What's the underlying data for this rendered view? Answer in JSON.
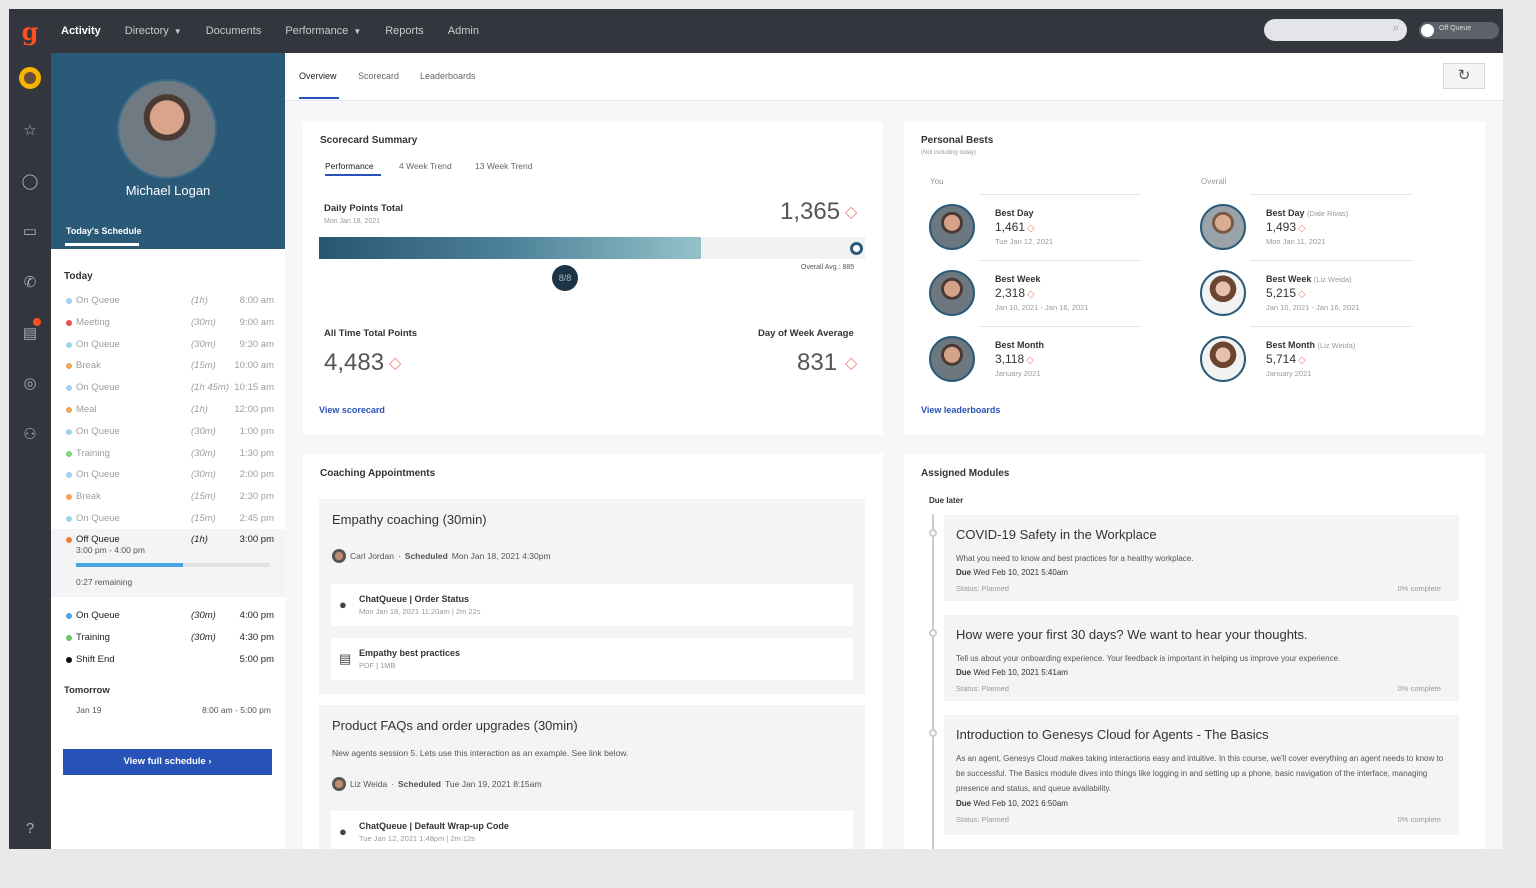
{
  "nav": {
    "logo": "g",
    "items": [
      {
        "label": "Activity",
        "active": true
      },
      {
        "label": "Directory",
        "caret": true
      },
      {
        "label": "Documents"
      },
      {
        "label": "Performance",
        "caret": true
      },
      {
        "label": "Reports"
      },
      {
        "label": "Admin"
      }
    ],
    "status_label": "Off Queue"
  },
  "profile": {
    "name": "Michael Logan",
    "tab": "Today's Schedule"
  },
  "schedule": {
    "today_label": "Today",
    "items": [
      {
        "name": "On Queue",
        "dur": "(1h)",
        "time": "8:00 am",
        "color": "#9fd3f2"
      },
      {
        "name": "Meeting",
        "dur": "(30m)",
        "time": "9:00 am",
        "color": "#e8504f"
      },
      {
        "name": "On Queue",
        "dur": "(30m)",
        "time": "9:30 am",
        "color": "#9fd3f2"
      },
      {
        "name": "Break",
        "dur": "(15m)",
        "time": "10:00 am",
        "color": "#f2a35c"
      },
      {
        "name": "On Queue",
        "dur": "(1h 45m)",
        "time": "10:15 am",
        "color": "#9fd3f2"
      },
      {
        "name": "Meal",
        "dur": "(1h)",
        "time": "12:00 pm",
        "color": "#f2a35c"
      },
      {
        "name": "On Queue",
        "dur": "(30m)",
        "time": "1:00 pm",
        "color": "#9fd3f2"
      },
      {
        "name": "Training",
        "dur": "(30m)",
        "time": "1:30 pm",
        "color": "#7fd37a"
      },
      {
        "name": "On Queue",
        "dur": "(30m)",
        "time": "2:00 pm",
        "color": "#9fd3f2"
      },
      {
        "name": "Break",
        "dur": "(15m)",
        "time": "2:30 pm",
        "color": "#f2a35c"
      },
      {
        "name": "On Queue",
        "dur": "(15m)",
        "time": "2:45 pm",
        "color": "#9fd3f2"
      }
    ],
    "current": {
      "name": "Off Queue",
      "dur": "(1h)",
      "time": "3:00 pm",
      "color": "#f07a30",
      "range": "3:00 pm - 4:00 pm",
      "remaining": "0:27 remaining",
      "progress": 0.55
    },
    "after": [
      {
        "name": "On Queue",
        "dur": "(30m)",
        "time": "4:00 pm",
        "color": "#4aa6e0"
      },
      {
        "name": "Training",
        "dur": "(30m)",
        "time": "4:30 pm",
        "color": "#6cc365"
      },
      {
        "name": "Shift End",
        "dur": "",
        "time": "5:00 pm",
        "color": "#111111"
      }
    ],
    "tomorrow_label": "Tomorrow",
    "tomorrow_date": "Jan 19",
    "tomorrow_time": "8:00 am - 5:00 pm",
    "full_button": "View full schedule ›"
  },
  "subtabs": [
    "Overview",
    "Scorecard",
    "Leaderboards"
  ],
  "scorecard": {
    "title": "Scorecard Summary",
    "tabs": [
      "Performance",
      "4 Week Trend",
      "13 Week Trend"
    ],
    "daily_label": "Daily Points Total",
    "daily_date": "Mon Jan 18, 2021",
    "daily_value": "1,365",
    "daily_progress": 0.7,
    "marker_label": "8/8",
    "overall_avg": "Overall Avg.: 885",
    "alltime_label": "All Time Total Points",
    "alltime_value": "4,483",
    "dow_label": "Day of Week Average",
    "dow_value": "831",
    "view_link": "View scorecard"
  },
  "bests": {
    "title": "Personal Bests",
    "subtitle": "(Not including today)",
    "you_label": "You",
    "overall_label": "Overall",
    "you": [
      {
        "label": "Best Day",
        "who": "",
        "value": "1,461",
        "date": "Tue Jan 12, 2021"
      },
      {
        "label": "Best Week",
        "who": "",
        "value": "2,318",
        "date": "Jan 10, 2021 - Jan 16, 2021"
      },
      {
        "label": "Best Month",
        "who": "",
        "value": "3,118",
        "date": "January 2021"
      }
    ],
    "overall": [
      {
        "label": "Best Day",
        "who": "(Dale Rivas)",
        "value": "1,493",
        "date": "Mon Jan 11, 2021"
      },
      {
        "label": "Best Week",
        "who": "(Liz Weida)",
        "value": "5,215",
        "date": "Jan 10, 2021 - Jan 16, 2021"
      },
      {
        "label": "Best Month",
        "who": "(Liz Weida)",
        "value": "5,714",
        "date": "January 2021"
      }
    ],
    "view_link": "View leaderboards"
  },
  "coaching": {
    "title": "Coaching Appointments",
    "appts": [
      {
        "title": "Empathy coaching (30min)",
        "meta_name": "Carl Jordan",
        "meta_sched": "Scheduled",
        "meta_time": "Mon Jan 18, 2021 4:30pm",
        "items": [
          {
            "icon": "●",
            "a": "ChatQueue | Order Status",
            "b": "Mon Jan 18, 2021 11:20am | 2m 22s"
          },
          {
            "icon": "▤",
            "a": "Empathy best practices",
            "b": "PDF | 1MB"
          }
        ]
      },
      {
        "title": "Product FAQs and order upgrades (30min)",
        "desc": "New agents session 5. Lets use this interaction as an example. See link below.",
        "meta_name": "Liz Weida",
        "meta_sched": "Scheduled",
        "meta_time": "Tue Jan 19, 2021 8:15am",
        "items": [
          {
            "icon": "●",
            "a": "ChatQueue | Default Wrap-up Code",
            "b": "Tue Jan 12, 2021 1:48pm | 2m 12s"
          }
        ]
      }
    ]
  },
  "modules": {
    "title": "Assigned Modules",
    "group": "Due later",
    "items": [
      {
        "title": "COVID-19 Safety in the Workplace",
        "desc": "What you need to know and best practices for a healthy workplace.",
        "due_label": "Due",
        "due": "Wed Feb 10, 2021 5:40am",
        "status": "Status: Planned",
        "pct": "0% complete"
      },
      {
        "title": "How were your first 30 days? We want to hear your thoughts.",
        "desc": "Tell us about your onboarding experience. Your feedback is important in helping us improve your experience.",
        "due_label": "Due",
        "due": "Wed Feb 10, 2021 5:41am",
        "status": "Status: Planned",
        "pct": "0% complete"
      },
      {
        "title": "Introduction to Genesys Cloud for Agents - The Basics",
        "desc": "As an agent, Genesys Cloud makes taking interactions easy and intuitive. In this course, we'll cover everything an agent needs to know to be successful. The Basics module dives into things like logging in and setting up a phone, basic navigation of the interface, managing presence and status, and queue availability.",
        "due_label": "Due",
        "due": "Wed Feb 10, 2021 6:50am",
        "status": "Status: Planned",
        "pct": "0% complete"
      }
    ]
  },
  "colors": {
    "accent": "#2752b8",
    "header": "#2a5a77",
    "gem": "#f0877a"
  }
}
